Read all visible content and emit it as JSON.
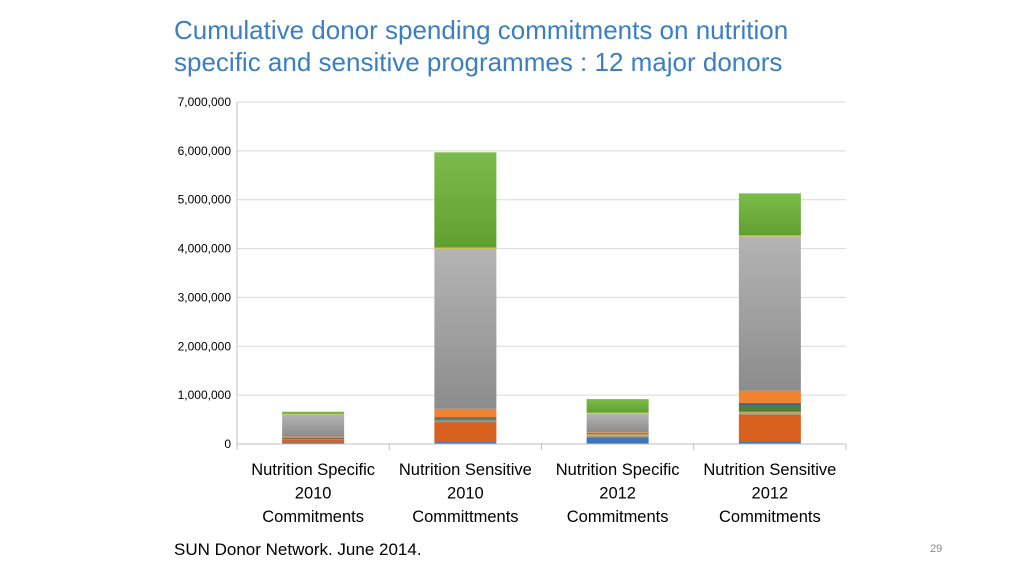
{
  "slide": {
    "title_lines": [
      "Cumulative donor spending commitments on nutrition",
      "specific and sensitive programmes : 12 major donors"
    ],
    "source": "SUN Donor Network. June 2014.",
    "page_number": "29"
  },
  "chart_data": {
    "type": "bar",
    "stacked": true,
    "categories": [
      [
        "Nutrition Specific",
        "2010",
        "Commitments"
      ],
      [
        "Nutrition Sensitive",
        "2010",
        "Committments"
      ],
      [
        "Nutrition Specific",
        "2012",
        "Commitments"
      ],
      [
        "Nutrition Sensitive",
        "2012",
        "Commitments"
      ]
    ],
    "ylim": [
      0,
      7000000
    ],
    "yticks": [
      0,
      1000000,
      2000000,
      3000000,
      4000000,
      5000000,
      6000000,
      7000000
    ],
    "ytick_labels": [
      "0",
      "1,000,000",
      "2,000,000",
      "3,000,000",
      "4,000,000",
      "5,000,000",
      "6,000,000",
      "7,000,000"
    ],
    "grid": true,
    "legend": "none",
    "series_colors": [
      "#3f76b6",
      "#d8611f",
      "#8e8e8e",
      "#e0b21c",
      "#4a74b0",
      "#547c3c",
      "#2a5a8e",
      "#9a4a18",
      "#f08230",
      "#a8a8a8",
      "#e8c020",
      "#6cae3c"
    ],
    "series": [
      {
        "values": [
          30000,
          40000,
          130000,
          50000
        ]
      },
      {
        "values": [
          60000,
          400000,
          20000,
          550000
        ]
      },
      {
        "values": [
          10000,
          30000,
          20000,
          30000
        ]
      },
      {
        "values": [
          5000,
          10000,
          30000,
          20000
        ]
      },
      {
        "values": [
          5000,
          20000,
          10000,
          20000
        ]
      },
      {
        "values": [
          10000,
          20000,
          20000,
          130000
        ]
      },
      {
        "values": [
          0,
          10000,
          0,
          20000
        ]
      },
      {
        "values": [
          5000,
          20000,
          0,
          20000
        ]
      },
      {
        "values": [
          25000,
          170000,
          10000,
          250000
        ]
      },
      {
        "values": [
          460000,
          3280000,
          380000,
          3160000
        ]
      },
      {
        "values": [
          10000,
          20000,
          20000,
          20000
        ]
      },
      {
        "values": [
          40000,
          1950000,
          280000,
          860000
        ]
      }
    ]
  }
}
